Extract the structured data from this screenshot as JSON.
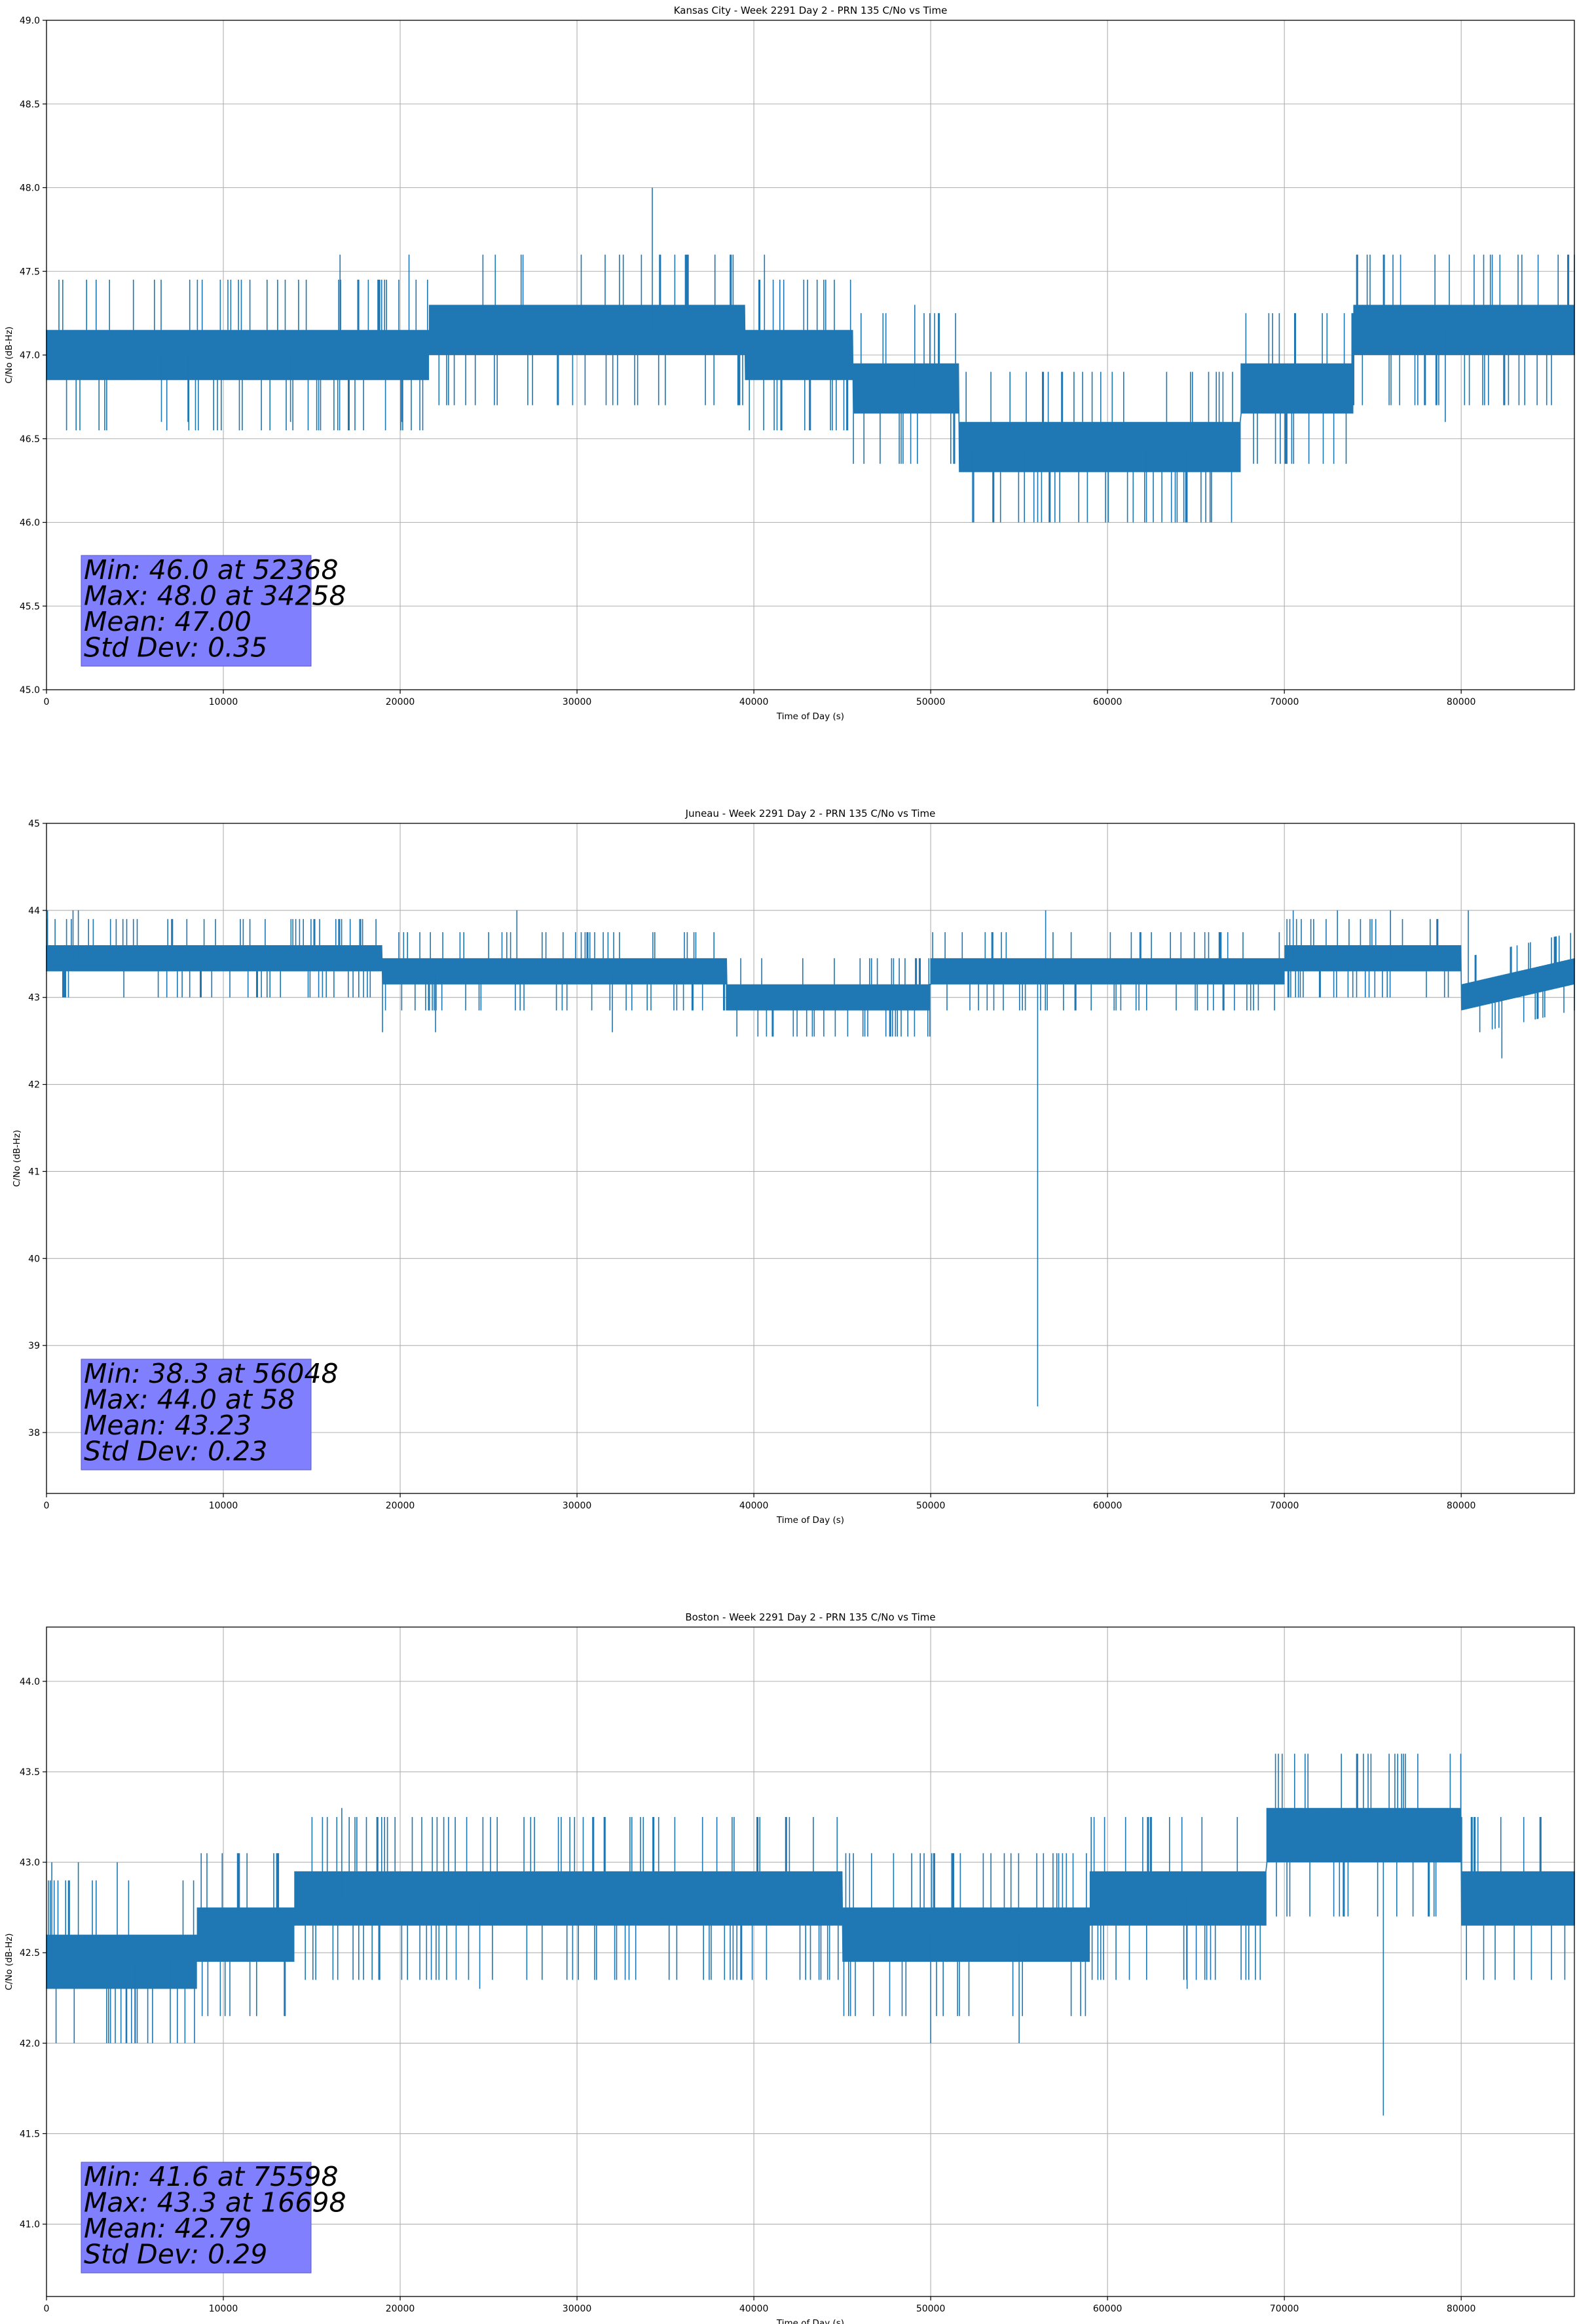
{
  "chart_data": [
    {
      "type": "line",
      "title": "Kansas City - Week 2291 Day 2 - PRN 135 C/No vs Time",
      "xlabel": "Time of Day (s)",
      "ylabel": "C/No (dB-Hz)",
      "xlim": [
        0,
        86400
      ],
      "ylim": [
        45.0,
        49.0
      ],
      "xticks": [
        0,
        10000,
        20000,
        30000,
        40000,
        50000,
        60000,
        70000,
        80000
      ],
      "yticks": [
        45.0,
        45.5,
        46.0,
        46.5,
        47.0,
        47.5,
        48.0,
        48.5,
        49.0
      ],
      "ytick_decimals": 1,
      "grid": true,
      "series_color": "#1f77b4",
      "step": 0.3,
      "base": [
        [
          0,
          47.0
        ],
        [
          21600,
          47.0
        ],
        [
          21600,
          47.15
        ],
        [
          39500,
          47.15
        ],
        [
          39500,
          47.0
        ],
        [
          45600,
          47.0
        ],
        [
          45600,
          46.8
        ],
        [
          51600,
          46.8
        ],
        [
          51600,
          46.45
        ],
        [
          67500,
          46.45
        ],
        [
          67500,
          46.8
        ],
        [
          73900,
          46.8
        ],
        [
          73900,
          47.15
        ],
        [
          86400,
          47.15
        ]
      ],
      "spikes": [
        [
          16600,
          47.6
        ],
        [
          20500,
          47.6
        ],
        [
          34258,
          48.0
        ],
        [
          37800,
          47.6
        ],
        [
          40600,
          47.6
        ],
        [
          49100,
          47.3
        ],
        [
          52368,
          46.0
        ],
        [
          55300,
          46.0
        ],
        [
          62200,
          46.0
        ],
        [
          64500,
          46.0
        ],
        [
          65800,
          46.0
        ],
        [
          79100,
          46.6
        ],
        [
          6500,
          46.6
        ],
        [
          8000,
          46.6
        ],
        [
          13800,
          46.6
        ],
        [
          20100,
          46.6
        ]
      ],
      "stats": [
        "Min: 46.0 at 52368",
        "Max: 48.0 at 34258",
        "Mean: 47.00",
        "Std Dev: 0.35"
      ]
    },
    {
      "type": "line",
      "title": "Juneau - Week 2291 Day 2 - PRN 135 C/No vs Time",
      "xlabel": "Time of Day (s)",
      "ylabel": "C/No (dB-Hz)",
      "xlim": [
        0,
        86400
      ],
      "ylim": [
        37.3,
        45.0
      ],
      "xticks": [
        0,
        10000,
        20000,
        30000,
        40000,
        50000,
        60000,
        70000,
        80000
      ],
      "yticks": [
        38,
        39,
        40,
        41,
        42,
        43,
        44,
        45
      ],
      "ytick_decimals": 0,
      "grid": true,
      "series_color": "#1f77b4",
      "step": 0.3,
      "base": [
        [
          0,
          43.45
        ],
        [
          19000,
          43.45
        ],
        [
          19000,
          43.3
        ],
        [
          38500,
          43.3
        ],
        [
          38500,
          43.0
        ],
        [
          50000,
          43.0
        ],
        [
          50000,
          43.3
        ],
        [
          70000,
          43.3
        ],
        [
          70000,
          43.45
        ],
        [
          80000,
          43.45
        ],
        [
          80000,
          43.0
        ],
        [
          86400,
          43.3
        ]
      ],
      "spikes": [
        [
          58,
          44.0
        ],
        [
          1500,
          44.0
        ],
        [
          1800,
          44.0
        ],
        [
          26600,
          44.0
        ],
        [
          56048,
          38.3
        ],
        [
          56500,
          44.0
        ],
        [
          70500,
          44.0
        ],
        [
          73000,
          44.0
        ],
        [
          76000,
          44.0
        ],
        [
          80400,
          44.0
        ],
        [
          82300,
          42.3
        ],
        [
          19000,
          42.6
        ],
        [
          22000,
          42.6
        ],
        [
          32000,
          42.6
        ]
      ],
      "stats": [
        "Min: 38.3 at 56048",
        "Max: 44.0 at 58",
        "Mean: 43.23",
        "Std Dev: 0.23"
      ]
    },
    {
      "type": "line",
      "title": "Boston - Week 2291 Day 2 - PRN 135 C/No vs Time",
      "xlabel": "Time of Day (s)",
      "ylabel": "C/No (dB-Hz)",
      "xlim": [
        0,
        86400
      ],
      "ylim": [
        40.6,
        44.3
      ],
      "xticks": [
        0,
        10000,
        20000,
        30000,
        40000,
        50000,
        60000,
        70000,
        80000
      ],
      "yticks": [
        41.0,
        41.5,
        42.0,
        42.5,
        43.0,
        43.5,
        44.0
      ],
      "ytick_decimals": 1,
      "grid": true,
      "series_color": "#1f77b4",
      "step": 0.3,
      "base": [
        [
          0,
          42.45
        ],
        [
          8500,
          42.45
        ],
        [
          8500,
          42.6
        ],
        [
          14000,
          42.6
        ],
        [
          14000,
          42.8
        ],
        [
          45000,
          42.8
        ],
        [
          45000,
          42.6
        ],
        [
          59000,
          42.6
        ],
        [
          59000,
          42.8
        ],
        [
          69000,
          42.8
        ],
        [
          69000,
          43.15
        ],
        [
          80000,
          43.15
        ],
        [
          80000,
          42.8
        ],
        [
          86400,
          42.8
        ]
      ],
      "spikes": [
        [
          300,
          43.0
        ],
        [
          1800,
          43.0
        ],
        [
          4000,
          43.0
        ],
        [
          4500,
          42.0
        ],
        [
          5000,
          42.0
        ],
        [
          7000,
          42.0
        ],
        [
          16698,
          43.3
        ],
        [
          24500,
          42.3
        ],
        [
          50000,
          42.0
        ],
        [
          55000,
          42.0
        ],
        [
          64500,
          42.3
        ],
        [
          75598,
          41.6
        ]
      ],
      "stats": [
        "Min: 41.6 at 75598",
        "Max: 43.3 at 16698",
        "Mean: 42.79",
        "Std Dev: 0.29"
      ]
    }
  ]
}
